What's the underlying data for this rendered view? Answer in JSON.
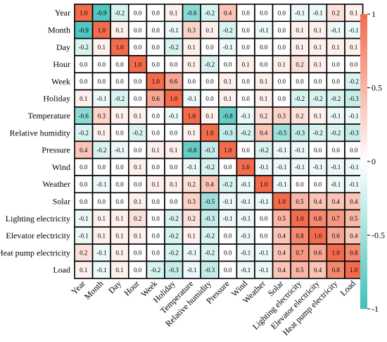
{
  "chart_data": {
    "type": "heatmap",
    "title": "",
    "variables": [
      "Year",
      "Month",
      "Day",
      "Hour",
      "Week",
      "Holiday",
      "Temperature",
      "Relative humidity",
      "Pressure",
      "Wind",
      "Weather",
      "Solar",
      "Lighting electricity",
      "Elevator electricity",
      "Heat pump electricity",
      "Load"
    ],
    "values": [
      [
        1.0,
        -0.9,
        -0.2,
        0.0,
        0.0,
        0.1,
        -0.6,
        -0.2,
        0.4,
        0.0,
        0.0,
        0.0,
        -0.1,
        -0.1,
        0.2,
        0.1
      ],
      [
        -0.9,
        1.0,
        0.1,
        0.0,
        0.0,
        -0.1,
        0.3,
        0.1,
        -0.2,
        0.0,
        -0.1,
        0.0,
        0.1,
        0.1,
        -0.1,
        -0.1
      ],
      [
        -0.2,
        0.1,
        1.0,
        0.0,
        0.0,
        -0.2,
        0.1,
        0.0,
        -0.1,
        0.0,
        0.0,
        0.0,
        0.1,
        0.1,
        0.1,
        0.1
      ],
      [
        0.0,
        0.0,
        0.0,
        1.0,
        0.0,
        0.0,
        0.1,
        -0.2,
        0.0,
        0.1,
        0.0,
        0.1,
        0.2,
        0.1,
        0.0,
        0.0
      ],
      [
        0.0,
        0.0,
        0.0,
        0.0,
        1.0,
        0.6,
        0.0,
        0.0,
        0.1,
        0.0,
        0.1,
        0.0,
        0.0,
        0.0,
        0.0,
        -0.2
      ],
      [
        0.1,
        -0.1,
        -0.2,
        0.0,
        0.6,
        1.0,
        -0.1,
        0.0,
        0.1,
        0.0,
        0.1,
        0.0,
        -0.2,
        -0.2,
        -0.2,
        -0.3
      ],
      [
        -0.6,
        0.3,
        0.1,
        0.1,
        0.0,
        -0.1,
        1.0,
        0.1,
        -0.8,
        -0.1,
        0.2,
        0.3,
        0.2,
        0.1,
        -0.1,
        -0.1
      ],
      [
        -0.2,
        0.1,
        0.0,
        -0.2,
        0.0,
        0.0,
        0.1,
        1.0,
        -0.3,
        -0.2,
        0.4,
        -0.5,
        -0.3,
        -0.2,
        -0.2,
        -0.3
      ],
      [
        0.4,
        -0.2,
        -0.1,
        0.0,
        0.1,
        0.1,
        -0.8,
        -0.3,
        1.0,
        0.0,
        -0.2,
        -0.1,
        -0.1,
        0.0,
        0.0,
        0.0
      ],
      [
        0.0,
        0.0,
        0.0,
        0.1,
        0.0,
        0.0,
        -0.1,
        -0.2,
        0.0,
        1.0,
        -0.1,
        -0.1,
        -0.1,
        -0.1,
        -0.1,
        -0.1
      ],
      [
        0.0,
        -0.1,
        0.0,
        0.0,
        0.1,
        0.1,
        0.2,
        0.4,
        -0.2,
        -0.1,
        1.0,
        -0.1,
        0.0,
        0.0,
        -0.1,
        -0.1
      ],
      [
        0.0,
        0.0,
        0.0,
        0.1,
        0.0,
        0.0,
        0.3,
        -0.5,
        -0.1,
        -0.1,
        -0.1,
        1.0,
        0.5,
        0.4,
        0.4,
        0.4
      ],
      [
        -0.1,
        0.1,
        0.1,
        0.2,
        0.0,
        -0.2,
        0.2,
        -0.3,
        -0.1,
        -0.1,
        0.0,
        0.5,
        1.0,
        0.8,
        0.7,
        0.5
      ],
      [
        -0.1,
        0.1,
        0.1,
        0.1,
        0.0,
        -0.2,
        0.1,
        -0.2,
        0.0,
        -0.1,
        0.0,
        0.4,
        0.8,
        1.0,
        0.6,
        0.4
      ],
      [
        0.2,
        -0.1,
        0.1,
        0.0,
        0.0,
        -0.2,
        -0.1,
        -0.2,
        0.0,
        -0.1,
        -0.1,
        0.4,
        0.7,
        0.6,
        1.0,
        0.8
      ],
      [
        0.1,
        -0.1,
        0.1,
        0.0,
        -0.2,
        -0.3,
        -0.1,
        -0.3,
        0.0,
        -0.1,
        -0.1,
        0.4,
        0.5,
        0.4,
        0.8,
        1.0
      ]
    ],
    "colorbar": {
      "min": -1,
      "max": 1,
      "ticks": [
        1,
        0.5,
        0,
        -0.5,
        -1
      ],
      "tick_labels": [
        "1",
        "0.5",
        "0",
        "-0.5",
        "-1"
      ],
      "color_positive": "#f26b4c",
      "color_zero": "#ffffff",
      "color_negative": "#3fc1b8"
    }
  }
}
